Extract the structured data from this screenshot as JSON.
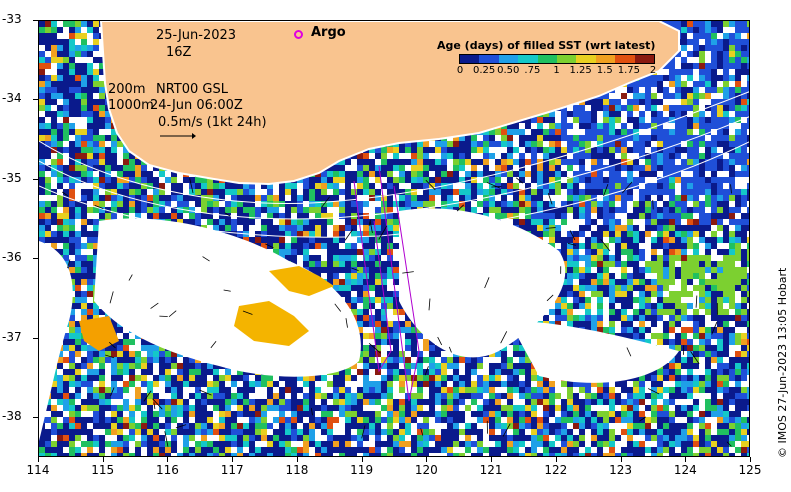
{
  "map": {
    "date": "25-Jun-2023",
    "hour": "16Z",
    "depth_200": "200m",
    "depth_1000": "1000m",
    "product": "NRT00 GSL",
    "analysis_time": "24-Jun 06:00Z",
    "scale_arrow_label": "0.5m/s (1kt 24h)",
    "argo_label": "Argo",
    "copyright": "© IMOS 27-Jun-2023 13:05 Hobart",
    "lon_min": 114,
    "lon_max": 125,
    "lat_min": -38.5,
    "lat_max": -33
  },
  "axes": {
    "y_ticks": [
      "-33",
      "-34",
      "-35",
      "-36",
      "-37",
      "-38"
    ],
    "y_values": [
      -33,
      -34,
      -35,
      -36,
      -37,
      -38
    ],
    "x_ticks": [
      "114",
      "115",
      "116",
      "117",
      "118",
      "119",
      "120",
      "121",
      "122",
      "123",
      "124",
      "125"
    ],
    "x_values": [
      114,
      115,
      116,
      117,
      118,
      119,
      120,
      121,
      122,
      123,
      124,
      125
    ]
  },
  "legend": {
    "title": "Age (days) of filled SST (wrt latest)",
    "ticks": [
      "0",
      "0.25",
      "0.50",
      ".75",
      "1",
      "1.25",
      "1.5",
      "1.75",
      "2"
    ],
    "tick_values": [
      0,
      0.25,
      0.5,
      0.75,
      1,
      1.25,
      1.5,
      1.75,
      2
    ],
    "colors": [
      "#0a1a8c",
      "#1f4fd8",
      "#1fa0e8",
      "#14c8c8",
      "#20c060",
      "#7cd030",
      "#e8d020",
      "#f0a020",
      "#e05010",
      "#8a1a10"
    ]
  },
  "colors": {
    "land": "#f9c48f",
    "coast": "#ffffff",
    "orange_patch": "#f4b400",
    "argo": "#e000e0",
    "track": "#b000d0"
  }
}
